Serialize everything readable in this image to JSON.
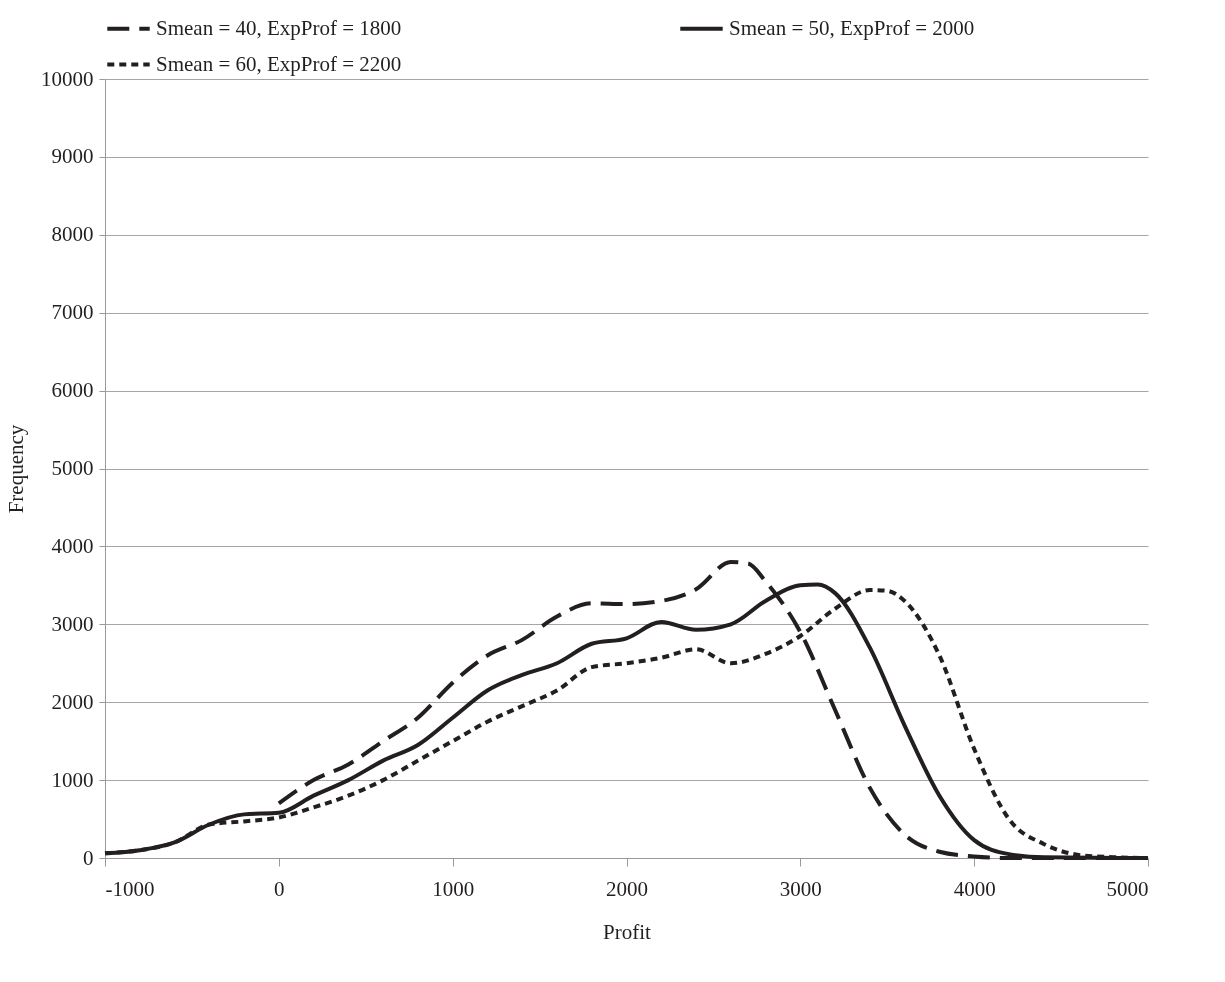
{
  "chart_data": {
    "type": "line",
    "xlabel": "Profit",
    "ylabel": "Frequency",
    "x": [
      -1000,
      -800,
      -600,
      -400,
      -200,
      0,
      200,
      400,
      600,
      800,
      1000,
      1200,
      1400,
      1600,
      1800,
      2000,
      2200,
      2400,
      2600,
      2800,
      3000,
      3200,
      3400,
      3500,
      3600,
      3800,
      4000,
      4200,
      4400,
      4600,
      4800,
      5000
    ],
    "series": [
      {
        "name": "Smean = 40, ExpProf = 1800",
        "color": "#231f20",
        "line_style": "dashed",
        "x": [
          0,
          200,
          400,
          600,
          800,
          1000,
          1200,
          1400,
          1600,
          1800,
          2000,
          2200,
          2400,
          2600,
          2700,
          2800,
          3000,
          3200,
          3400,
          3600,
          3800,
          4000,
          4200,
          5000
        ],
        "values": [
          700,
          1000,
          1200,
          1500,
          1800,
          2250,
          2600,
          2800,
          3100,
          3270,
          3260,
          3300,
          3450,
          3800,
          3780,
          3550,
          2900,
          1900,
          900,
          300,
          80,
          20,
          0,
          0
        ]
      },
      {
        "name": "Smean = 50, ExpProf = 2000",
        "color": "#231f20",
        "line_style": "solid",
        "x": [
          -1000,
          -800,
          -600,
          -400,
          -200,
          0,
          200,
          400,
          600,
          800,
          1000,
          1200,
          1400,
          1600,
          1800,
          2000,
          2200,
          2400,
          2600,
          2800,
          3000,
          3100,
          3200,
          3400,
          3600,
          3800,
          4000,
          4200,
          4400,
          5000
        ],
        "values": [
          60,
          100,
          200,
          430,
          560,
          580,
          800,
          1000,
          1250,
          1450,
          1800,
          2150,
          2350,
          2500,
          2750,
          2820,
          3030,
          2930,
          3000,
          3300,
          3500,
          3510,
          3400,
          2700,
          1700,
          800,
          230,
          50,
          10,
          0
        ]
      },
      {
        "name": "Smean = 60, ExpProf = 2200",
        "color": "#231f20",
        "line_style": "dotted",
        "values": [
          60,
          100,
          200,
          430,
          470,
          520,
          650,
          800,
          1000,
          1250,
          1500,
          1750,
          1950,
          2150,
          2450,
          2500,
          2570,
          2680,
          2500,
          2620,
          2850,
          3200,
          3440,
          3430,
          3300,
          2600,
          1400,
          500,
          180,
          40,
          10,
          0
        ]
      }
    ],
    "xlim": [
      -1000,
      5000
    ],
    "xticks": [
      -1000,
      0,
      1000,
      2000,
      3000,
      4000,
      5000
    ],
    "ylim": [
      0,
      10000
    ],
    "yticks": [
      0,
      1000,
      2000,
      3000,
      4000,
      5000,
      6000,
      7000,
      8000,
      9000,
      10000
    ],
    "grid": "y",
    "legend": "top"
  }
}
